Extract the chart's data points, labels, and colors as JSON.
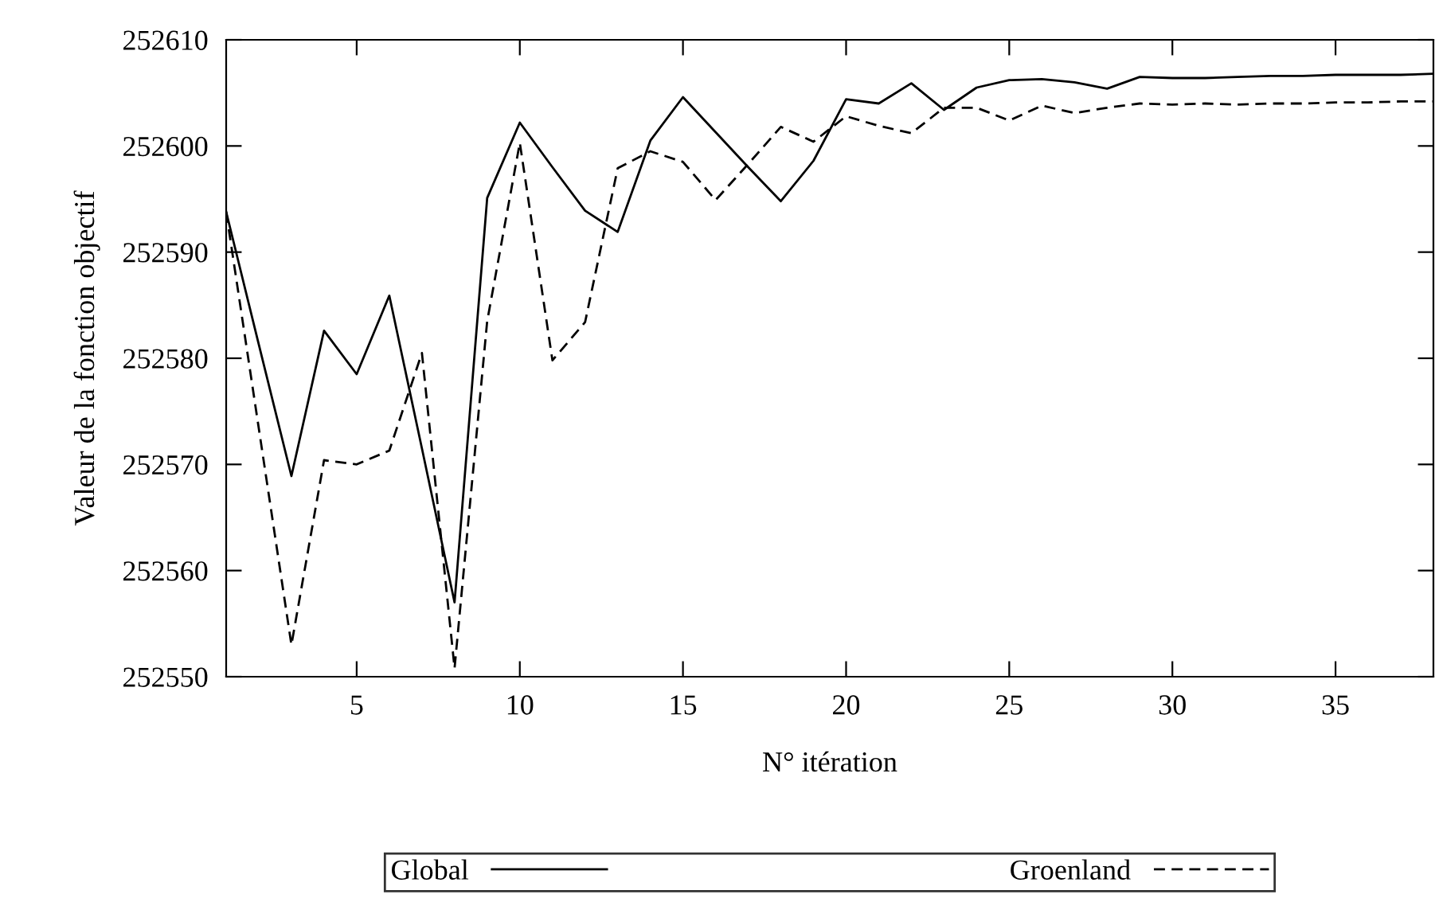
{
  "chart_data": {
    "type": "line",
    "xlabel": "N° itération",
    "ylabel": "Valeur de la fonction objectif",
    "xlim": [
      1,
      38
    ],
    "xticks": [
      5,
      10,
      15,
      20,
      25,
      30,
      35
    ],
    "ylim": [
      252550,
      252610
    ],
    "yticks": [
      252550,
      252560,
      252570,
      252580,
      252590,
      252600,
      252610
    ],
    "grid": false,
    "legend": "bottom",
    "marker": "none",
    "x": [
      1,
      2,
      3,
      4,
      5,
      6,
      7,
      8,
      9,
      10,
      11,
      12,
      13,
      14,
      15,
      16,
      17,
      18,
      19,
      20,
      21,
      22,
      23,
      24,
      25,
      26,
      27,
      28,
      29,
      30,
      31,
      32,
      33,
      34,
      35,
      36,
      37,
      38
    ],
    "series": [
      {
        "name": "Global",
        "color": "#000000",
        "line_style": "solid",
        "values": [
          252593.8,
          252581.3,
          252568.9,
          252582.6,
          252578.5,
          252585.9,
          252571.5,
          252557.0,
          252595.1,
          252602.2,
          252598.0,
          252593.9,
          252591.9,
          252600.5,
          252604.6,
          252601.3,
          252598.0,
          252594.8,
          252598.6,
          252604.4,
          252604.0,
          252605.9,
          252603.4,
          252605.5,
          252606.2,
          252606.3,
          252606.0,
          252605.4,
          252606.5,
          252606.4,
          252606.4,
          252606.5,
          252606.6,
          252606.6,
          252606.7,
          252606.7,
          252606.7,
          252606.8
        ]
      },
      {
        "name": "Groenland",
        "color": "#000000",
        "line_style": "dashed",
        "values": [
          252593.8,
          252573.4,
          252553.0,
          252570.4,
          252570.0,
          252571.3,
          252580.5,
          252550.8,
          252583.5,
          252600.3,
          252579.8,
          252583.4,
          252597.9,
          252599.5,
          252598.5,
          252594.9,
          252598.3,
          252601.8,
          252600.4,
          252602.8,
          252601.9,
          252601.2,
          252603.6,
          252603.6,
          252602.4,
          252603.8,
          252603.1,
          252603.6,
          252604.0,
          252603.9,
          252604.0,
          252603.9,
          252604.0,
          252604.0,
          252604.1,
          252604.1,
          252604.2,
          252604.2
        ]
      }
    ]
  }
}
